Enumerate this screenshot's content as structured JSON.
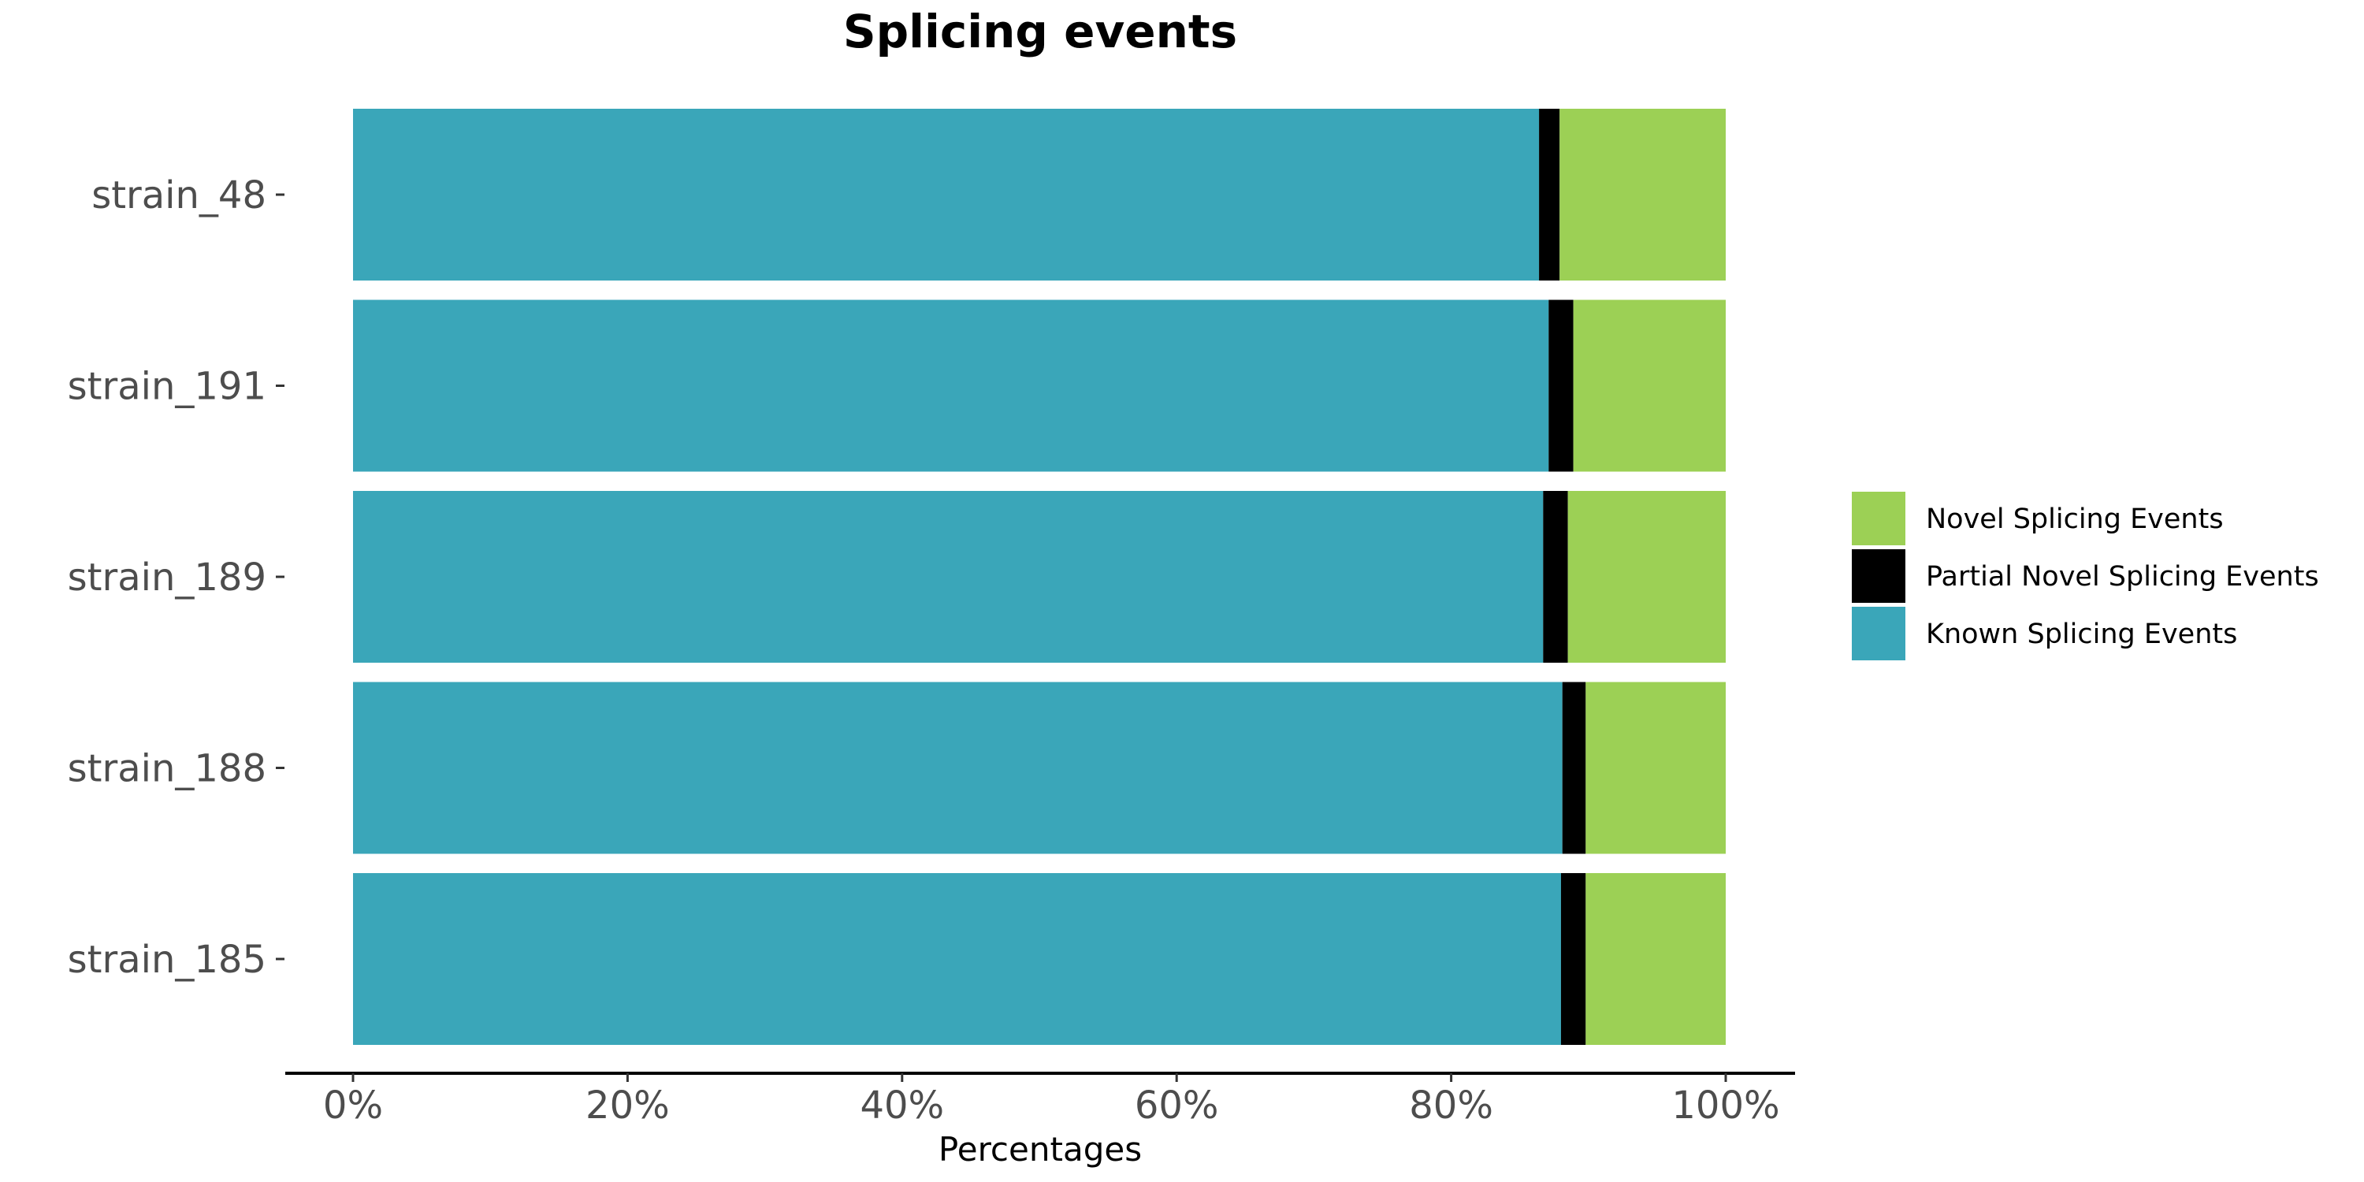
{
  "chart_data": {
    "type": "bar",
    "orientation": "horizontal",
    "stacked": true,
    "title": "Splicing events",
    "xlabel": "Percentages",
    "ylabel": "",
    "xlim": [
      0,
      100
    ],
    "x_ticks": [
      "0%",
      "20%",
      "40%",
      "60%",
      "80%",
      "100%"
    ],
    "x_tick_values": [
      0,
      20,
      40,
      60,
      80,
      100
    ],
    "categories": [
      "strain_48",
      "strain_191",
      "strain_189",
      "strain_188",
      "strain_185"
    ],
    "series": [
      {
        "name": "Known Splicing Events",
        "color": "#3aa6b9",
        "values": [
          86.4,
          87.1,
          86.7,
          88.1,
          88.0
        ]
      },
      {
        "name": "Partial Novel Splicing Events",
        "color": "#000000",
        "values": [
          1.5,
          1.8,
          1.8,
          1.7,
          1.8
        ]
      },
      {
        "name": "Novel Splicing Events",
        "color": "#9cd055",
        "values": [
          12.1,
          11.1,
          11.5,
          10.2,
          10.2
        ]
      }
    ],
    "legend": {
      "position": "right",
      "order": [
        "Novel Splicing Events",
        "Partial Novel Splicing Events",
        "Known Splicing Events"
      ]
    },
    "grid": false
  }
}
